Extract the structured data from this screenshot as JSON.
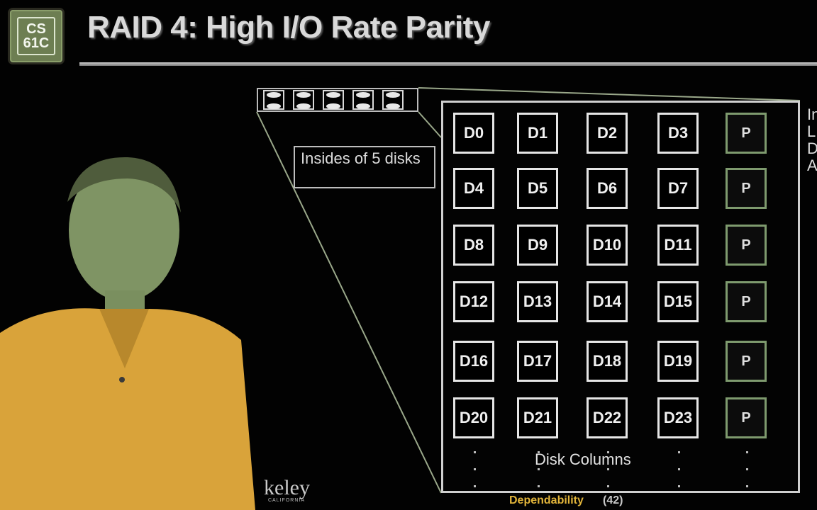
{
  "logo": {
    "line1": "CS",
    "line2": "61C"
  },
  "slide": {
    "title": "RAID 4: High I/O Rate Parity"
  },
  "callout": {
    "text": "Insides of 5 disks"
  },
  "grid": {
    "rows": [
      [
        "D0",
        "D1",
        "D2",
        "D3",
        "P"
      ],
      [
        "D4",
        "D5",
        "D6",
        "D7",
        "P"
      ],
      [
        "D8",
        "D9",
        "D10",
        "D11",
        "P"
      ],
      [
        "D12",
        "D13",
        "D14",
        "D15",
        "P"
      ],
      [
        "D16",
        "D17",
        "D18",
        "D19",
        "P"
      ],
      [
        "D20",
        "D21",
        "D22",
        "D23",
        "P"
      ]
    ],
    "columns_label": "Disk Columns"
  },
  "right_text_cut": [
    "In",
    "L",
    "D",
    "A"
  ],
  "footer": {
    "brand": "keley",
    "brand_sub": "CALIFORNIA",
    "section": "Dependability",
    "page": "(42)"
  }
}
